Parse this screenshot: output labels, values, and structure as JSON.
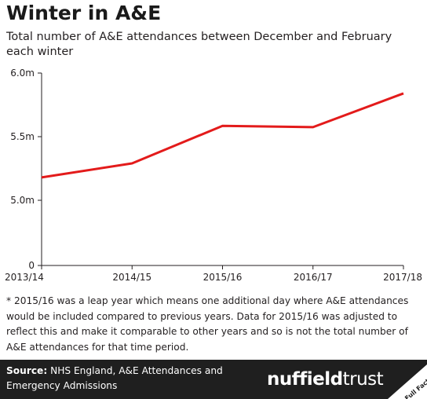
{
  "header": {
    "title": "Winter in A&E",
    "subtitle": "Total number of A&E attendances between December and February each winter"
  },
  "chart_data": {
    "type": "line",
    "x": [
      "2013/14",
      "2014/15",
      "2015/16",
      "2016/17",
      "2017/18"
    ],
    "series": [
      {
        "values": [
          5.18,
          5.29,
          5.585,
          5.575,
          5.84
        ],
        "color": "#e31b1b"
      }
    ],
    "yticks": [
      {
        "value": 0,
        "label": "0"
      },
      {
        "value": 5.0,
        "label": "5.0m"
      },
      {
        "value": 5.5,
        "label": "5.5m"
      },
      {
        "value": 6.0,
        "label": "6.0m"
      }
    ],
    "ylim": [
      4.5,
      6.0
    ],
    "axis_break": true,
    "grid": false
  },
  "footnote": "* 2015/16 was a leap year which means one additional day where A&E attendances would be included compared to previous years. Data for 2015/16 was adjusted to reflect this and make it comparable to other years and so is not the total number of A&E attendances for that time period.",
  "footer": {
    "source_label": "Source:",
    "source_text": "NHS England, A&E Attendances and Emergency Admissions",
    "logo_bold": "nuffield",
    "logo_regular": "trust",
    "badge_text": "Full Fact"
  }
}
